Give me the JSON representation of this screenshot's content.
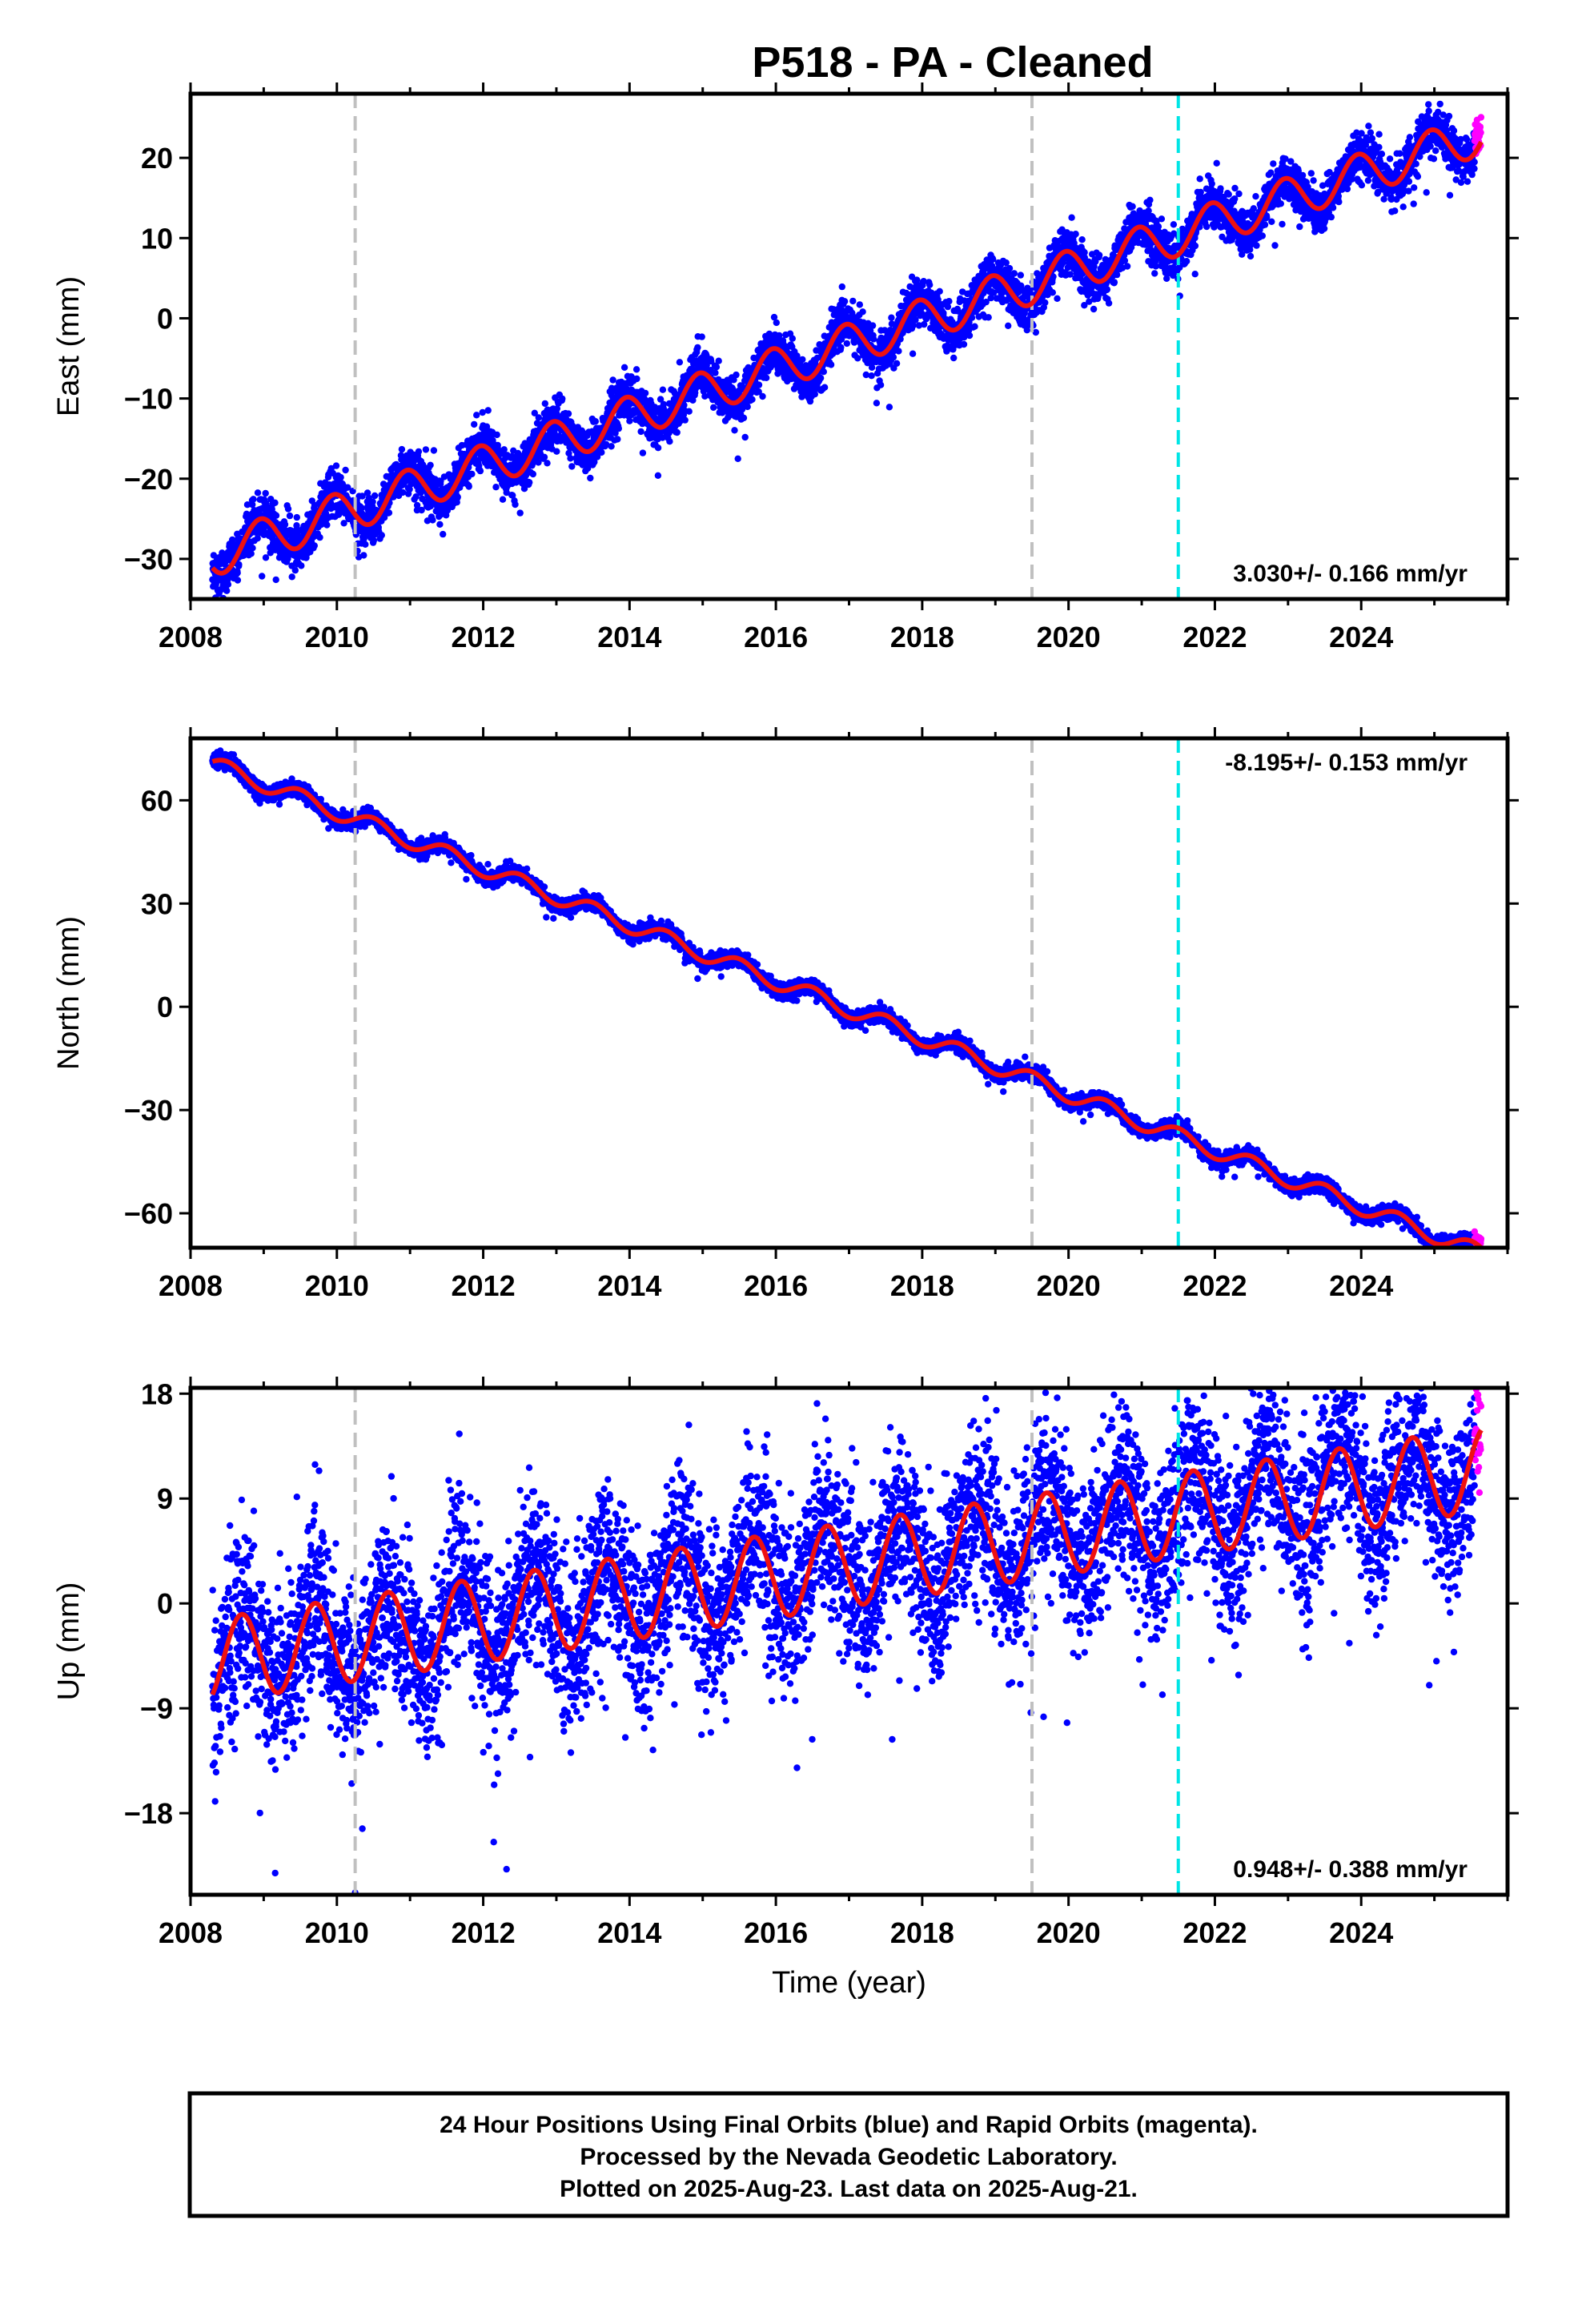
{
  "title": "P518  - PA - Cleaned",
  "colors": {
    "final": "#0000ff",
    "rapid": "#ff00ff",
    "model": "#ee1111",
    "break_equipment": "#c0c0c0",
    "break_earthquake": "#00e5e5",
    "frame": "#000000"
  },
  "chart_data": [
    {
      "type": "scatter",
      "name": "east",
      "ylabel": "East (mm)",
      "xlabel": "",
      "xlim": [
        2008,
        2026
      ],
      "ylim": [
        -35,
        28
      ],
      "yticks": [
        -30,
        -20,
        -10,
        0,
        10,
        20
      ],
      "xticks": [
        2008,
        2010,
        2012,
        2014,
        2016,
        2018,
        2020,
        2022,
        2024
      ],
      "data_start": 2008.3,
      "data_end": 2025.64,
      "rapid_start": 2025.55,
      "rate_label": "3.030+/- 0.166 mm/yr",
      "rate_position": "bottom-right",
      "rate_mm_per_yr": 3.03,
      "intercept_at_2008": -30.5,
      "seasonal_amplitude": 2.6,
      "seasonal_phase_peak": 0.95,
      "scatter_sd": 1.4,
      "breaks": [
        {
          "year": 2010.25,
          "kind": "equipment"
        },
        {
          "year": 2019.5,
          "kind": "equipment"
        },
        {
          "year": 2021.5,
          "kind": "earthquake"
        }
      ]
    },
    {
      "type": "scatter",
      "name": "north",
      "ylabel": "North (mm)",
      "xlabel": "",
      "xlim": [
        2008,
        2026
      ],
      "ylim": [
        -70,
        78
      ],
      "yticks": [
        -60,
        -30,
        0,
        30,
        60
      ],
      "xticks": [
        2008,
        2010,
        2012,
        2014,
        2016,
        2018,
        2020,
        2022,
        2024
      ],
      "data_start": 2008.3,
      "data_end": 2025.64,
      "rapid_start": 2025.55,
      "rate_label": "-8.195+/- 0.153 mm/yr",
      "rate_position": "top-right",
      "rate_mm_per_yr": -8.195,
      "intercept_at_2008": 73,
      "seasonal_amplitude": 2.4,
      "seasonal_phase_peak": 0.5,
      "scatter_sd": 1.1,
      "breaks": [
        {
          "year": 2010.25,
          "kind": "equipment"
        },
        {
          "year": 2019.5,
          "kind": "equipment"
        },
        {
          "year": 2021.5,
          "kind": "earthquake"
        }
      ]
    },
    {
      "type": "scatter",
      "name": "up",
      "ylabel": "Up (mm)",
      "xlabel": "Time (year)",
      "xlim": [
        2008,
        2026
      ],
      "ylim": [
        -25,
        18.5
      ],
      "yticks": [
        -18,
        -9,
        0,
        9,
        18
      ],
      "xticks": [
        2008,
        2010,
        2012,
        2014,
        2016,
        2018,
        2020,
        2022,
        2024
      ],
      "data_start": 2008.3,
      "data_end": 2025.64,
      "rapid_start": 2025.55,
      "rate_label": "0.948+/- 0.388 mm/yr",
      "rate_position": "bottom-right",
      "rate_mm_per_yr": 0.948,
      "intercept_at_2008": -5.2,
      "seasonal_amplitude": 3.6,
      "seasonal_phase_peak": 0.7,
      "scatter_sd": 3.6,
      "breaks": [
        {
          "year": 2010.25,
          "kind": "equipment"
        },
        {
          "year": 2019.5,
          "kind": "equipment"
        },
        {
          "year": 2021.5,
          "kind": "earthquake"
        }
      ]
    }
  ],
  "footer": {
    "line1": "24 Hour Positions Using Final Orbits (blue) and Rapid Orbits (magenta).",
    "line2": "Processed by the Nevada Geodetic Laboratory.",
    "line3": "Plotted on 2025-Aug-23. Last data on 2025-Aug-21."
  }
}
